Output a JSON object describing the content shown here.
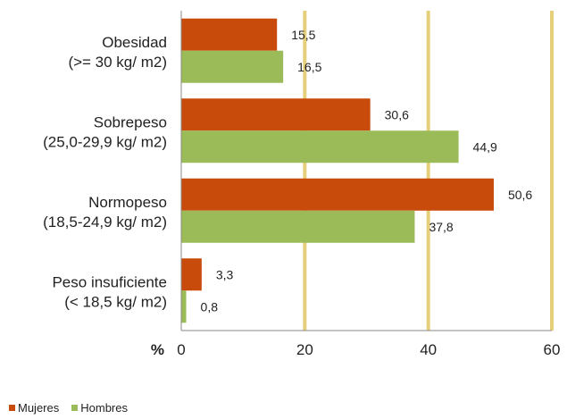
{
  "chart_data": {
    "type": "bar",
    "orientation": "horizontal",
    "categories": [
      [
        "Obesidad",
        "(>= 30 kg/ m2)"
      ],
      [
        "Sobrepeso",
        "(25,0-29,9 kg/ m2)"
      ],
      [
        "Normopeso",
        "(18,5-24,9 kg/ m2)"
      ],
      [
        "Peso insuficiente",
        "(< 18,5 kg/ m2)"
      ]
    ],
    "series": [
      {
        "name": "Mujeres",
        "color": "#c84b0c",
        "values": [
          15.5,
          30.6,
          50.6,
          3.3
        ],
        "labels": [
          "15,5",
          "30,6",
          "50,6",
          "3,3"
        ]
      },
      {
        "name": "Hombres",
        "color": "#9bbb59",
        "values": [
          16.5,
          44.9,
          37.8,
          0.8
        ],
        "labels": [
          "16,5",
          "44,9",
          "37,8",
          "0,8"
        ]
      }
    ],
    "xlim": [
      0,
      60
    ],
    "xticks": [
      "0",
      "20",
      "40",
      "60"
    ],
    "xunit": "%",
    "gridline_color": "#e6cf7a",
    "legend_position": "bottom-left"
  }
}
